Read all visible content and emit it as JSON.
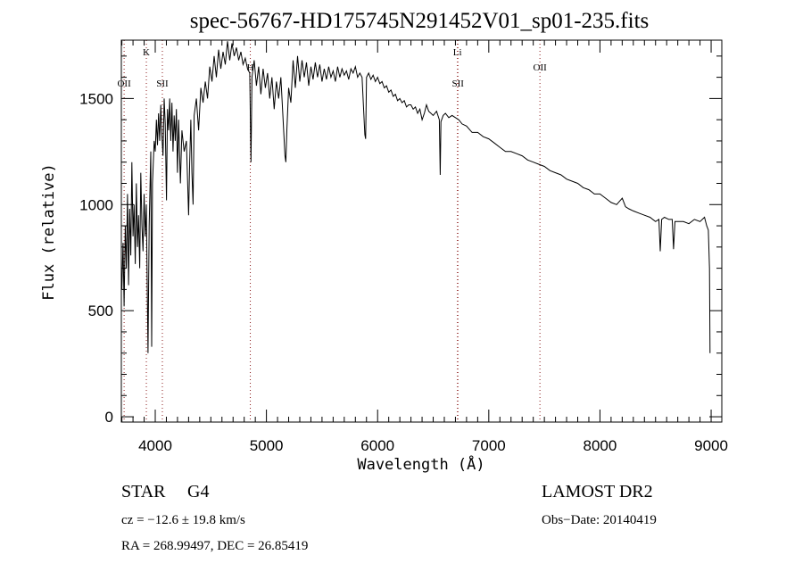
{
  "chart_data": {
    "type": "line",
    "title": "spec-56767-HD175745N291452V01_sp01-235.fits",
    "xlabel": "Wavelength (Å)",
    "ylabel": "Flux (relative)",
    "xlim": [
      3695,
      9096
    ],
    "ylim": [
      -25,
      1775
    ],
    "xticks": [
      4000,
      5000,
      6000,
      7000,
      8000,
      9000
    ],
    "yticks": [
      0,
      500,
      1000,
      1500
    ],
    "grid": false,
    "line_markers": [
      {
        "label": "OII",
        "x": 3720,
        "level": 3
      },
      {
        "label": "K",
        "x": 3920,
        "level": 1
      },
      {
        "label": "SII",
        "x": 4064,
        "level": 3
      },
      {
        "label": "H",
        "x": 4855,
        "level": 2
      },
      {
        "label": "Li",
        "x": 6718,
        "level": 1
      },
      {
        "label": "SII",
        "x": 6722,
        "level": 3
      },
      {
        "label": "OII",
        "x": 7460,
        "level": 2
      }
    ],
    "series": [
      {
        "name": "spectrum",
        "points": [
          [
            3700,
            600
          ],
          [
            3710,
            820
          ],
          [
            3720,
            520
          ],
          [
            3730,
            900
          ],
          [
            3740,
            700
          ],
          [
            3750,
            1050
          ],
          [
            3760,
            620
          ],
          [
            3770,
            980
          ],
          [
            3780,
            760
          ],
          [
            3790,
            1200
          ],
          [
            3800,
            850
          ],
          [
            3810,
            1000
          ],
          [
            3820,
            720
          ],
          [
            3830,
            1100
          ],
          [
            3840,
            800
          ],
          [
            3850,
            950
          ],
          [
            3860,
            700
          ],
          [
            3870,
            1150
          ],
          [
            3880,
            900
          ],
          [
            3890,
            780
          ],
          [
            3900,
            1050
          ],
          [
            3910,
            850
          ],
          [
            3920,
            1000
          ],
          [
            3930,
            520
          ],
          [
            3935,
            300
          ],
          [
            3945,
            900
          ],
          [
            3960,
            1250
          ],
          [
            3968,
            330
          ],
          [
            3975,
            1100
          ],
          [
            3990,
            1300
          ],
          [
            4000,
            1250
          ],
          [
            4010,
            1400
          ],
          [
            4020,
            1280
          ],
          [
            4030,
            1430
          ],
          [
            4040,
            1300
          ],
          [
            4050,
            1470
          ],
          [
            4060,
            1320
          ],
          [
            4070,
            1230
          ],
          [
            4080,
            1500
          ],
          [
            4090,
            1380
          ],
          [
            4101,
            1020
          ],
          [
            4110,
            1450
          ],
          [
            4120,
            1350
          ],
          [
            4130,
            1500
          ],
          [
            4140,
            1300
          ],
          [
            4150,
            1480
          ],
          [
            4160,
            1250
          ],
          [
            4170,
            1420
          ],
          [
            4180,
            1300
          ],
          [
            4190,
            1450
          ],
          [
            4200,
            1150
          ],
          [
            4210,
            1400
          ],
          [
            4226,
            1100
          ],
          [
            4240,
            1350
          ],
          [
            4260,
            1250
          ],
          [
            4280,
            1300
          ],
          [
            4300,
            950
          ],
          [
            4310,
            1200
          ],
          [
            4320,
            1400
          ],
          [
            4330,
            1150
          ],
          [
            4340,
            1000
          ],
          [
            4350,
            1420
          ],
          [
            4370,
            1500
          ],
          [
            4390,
            1350
          ],
          [
            4410,
            1550
          ],
          [
            4430,
            1480
          ],
          [
            4450,
            1580
          ],
          [
            4470,
            1500
          ],
          [
            4490,
            1650
          ],
          [
            4510,
            1580
          ],
          [
            4530,
            1700
          ],
          [
            4550,
            1600
          ],
          [
            4570,
            1730
          ],
          [
            4590,
            1640
          ],
          [
            4610,
            1720
          ],
          [
            4630,
            1660
          ],
          [
            4650,
            1770
          ],
          [
            4670,
            1680
          ],
          [
            4690,
            1760
          ],
          [
            4710,
            1700
          ],
          [
            4730,
            1740
          ],
          [
            4750,
            1680
          ],
          [
            4770,
            1720
          ],
          [
            4790,
            1660
          ],
          [
            4810,
            1690
          ],
          [
            4830,
            1640
          ],
          [
            4850,
            1620
          ],
          [
            4861,
            1200
          ],
          [
            4870,
            1600
          ],
          [
            4890,
            1680
          ],
          [
            4910,
            1560
          ],
          [
            4930,
            1650
          ],
          [
            4950,
            1520
          ],
          [
            4970,
            1640
          ],
          [
            4990,
            1550
          ],
          [
            5010,
            1620
          ],
          [
            5030,
            1500
          ],
          [
            5050,
            1600
          ],
          [
            5070,
            1450
          ],
          [
            5090,
            1580
          ],
          [
            5110,
            1500
          ],
          [
            5130,
            1600
          ],
          [
            5150,
            1400
          ],
          [
            5167,
            1230
          ],
          [
            5175,
            1200
          ],
          [
            5184,
            1350
          ],
          [
            5200,
            1550
          ],
          [
            5220,
            1480
          ],
          [
            5240,
            1680
          ],
          [
            5260,
            1550
          ],
          [
            5280,
            1700
          ],
          [
            5300,
            1580
          ],
          [
            5320,
            1680
          ],
          [
            5340,
            1600
          ],
          [
            5360,
            1670
          ],
          [
            5380,
            1560
          ],
          [
            5400,
            1650
          ],
          [
            5420,
            1590
          ],
          [
            5440,
            1670
          ],
          [
            5460,
            1600
          ],
          [
            5480,
            1660
          ],
          [
            5500,
            1580
          ],
          [
            5520,
            1640
          ],
          [
            5540,
            1590
          ],
          [
            5560,
            1650
          ],
          [
            5580,
            1600
          ],
          [
            5600,
            1630
          ],
          [
            5620,
            1580
          ],
          [
            5640,
            1650
          ],
          [
            5660,
            1600
          ],
          [
            5680,
            1640
          ],
          [
            5700,
            1610
          ],
          [
            5720,
            1630
          ],
          [
            5740,
            1590
          ],
          [
            5760,
            1640
          ],
          [
            5780,
            1620
          ],
          [
            5800,
            1650
          ],
          [
            5820,
            1600
          ],
          [
            5840,
            1620
          ],
          [
            5860,
            1600
          ],
          [
            5885,
            1330
          ],
          [
            5892,
            1310
          ],
          [
            5900,
            1600
          ],
          [
            5920,
            1620
          ],
          [
            5940,
            1590
          ],
          [
            5960,
            1610
          ],
          [
            5980,
            1580
          ],
          [
            6000,
            1600
          ],
          [
            6020,
            1570
          ],
          [
            6040,
            1580
          ],
          [
            6060,
            1550
          ],
          [
            6080,
            1560
          ],
          [
            6100,
            1530
          ],
          [
            6120,
            1540
          ],
          [
            6140,
            1510
          ],
          [
            6160,
            1520
          ],
          [
            6180,
            1490
          ],
          [
            6200,
            1500
          ],
          [
            6220,
            1480
          ],
          [
            6240,
            1490
          ],
          [
            6260,
            1460
          ],
          [
            6280,
            1470
          ],
          [
            6300,
            1470
          ],
          [
            6320,
            1450
          ],
          [
            6340,
            1460
          ],
          [
            6360,
            1430
          ],
          [
            6380,
            1450
          ],
          [
            6400,
            1400
          ],
          [
            6420,
            1430
          ],
          [
            6440,
            1470
          ],
          [
            6460,
            1440
          ],
          [
            6480,
            1430
          ],
          [
            6500,
            1420
          ],
          [
            6530,
            1440
          ],
          [
            6555,
            1400
          ],
          [
            6563,
            1140
          ],
          [
            6570,
            1390
          ],
          [
            6590,
            1420
          ],
          [
            6610,
            1430
          ],
          [
            6640,
            1410
          ],
          [
            6670,
            1420
          ],
          [
            6700,
            1410
          ],
          [
            6730,
            1400
          ],
          [
            6760,
            1380
          ],
          [
            6800,
            1370
          ],
          [
            6850,
            1340
          ],
          [
            6900,
            1340
          ],
          [
            6950,
            1320
          ],
          [
            7000,
            1310
          ],
          [
            7050,
            1290
          ],
          [
            7100,
            1270
          ],
          [
            7150,
            1250
          ],
          [
            7200,
            1250
          ],
          [
            7250,
            1240
          ],
          [
            7300,
            1230
          ],
          [
            7350,
            1210
          ],
          [
            7400,
            1200
          ],
          [
            7450,
            1190
          ],
          [
            7500,
            1180
          ],
          [
            7550,
            1160
          ],
          [
            7600,
            1150
          ],
          [
            7650,
            1140
          ],
          [
            7700,
            1120
          ],
          [
            7750,
            1110
          ],
          [
            7800,
            1100
          ],
          [
            7850,
            1080
          ],
          [
            7900,
            1070
          ],
          [
            7950,
            1050
          ],
          [
            8000,
            1050
          ],
          [
            8050,
            1030
          ],
          [
            8100,
            1010
          ],
          [
            8150,
            1000
          ],
          [
            8200,
            1030
          ],
          [
            8230,
            990
          ],
          [
            8260,
            980
          ],
          [
            8300,
            970
          ],
          [
            8350,
            960
          ],
          [
            8400,
            950
          ],
          [
            8450,
            940
          ],
          [
            8500,
            920
          ],
          [
            8530,
            930
          ],
          [
            8542,
            780
          ],
          [
            8555,
            930
          ],
          [
            8580,
            940
          ],
          [
            8620,
            930
          ],
          [
            8650,
            930
          ],
          [
            8662,
            790
          ],
          [
            8675,
            920
          ],
          [
            8700,
            920
          ],
          [
            8750,
            920
          ],
          [
            8800,
            910
          ],
          [
            8850,
            930
          ],
          [
            8900,
            920
          ],
          [
            8940,
            940
          ],
          [
            8960,
            900
          ],
          [
            8975,
            880
          ],
          [
            8985,
            700
          ],
          [
            8990,
            300
          ]
        ]
      }
    ],
    "marker_color": "#8b1a1a",
    "line_color": "#000000"
  },
  "info": {
    "class": "STAR",
    "subclass": "G4",
    "survey": "LAMOST DR2",
    "cz": "cz = −12.6 ± 19.8 km/s",
    "obs_date": "Obs−Date: 20140419",
    "coords": "RA = 268.99497, DEC =  26.85419"
  }
}
